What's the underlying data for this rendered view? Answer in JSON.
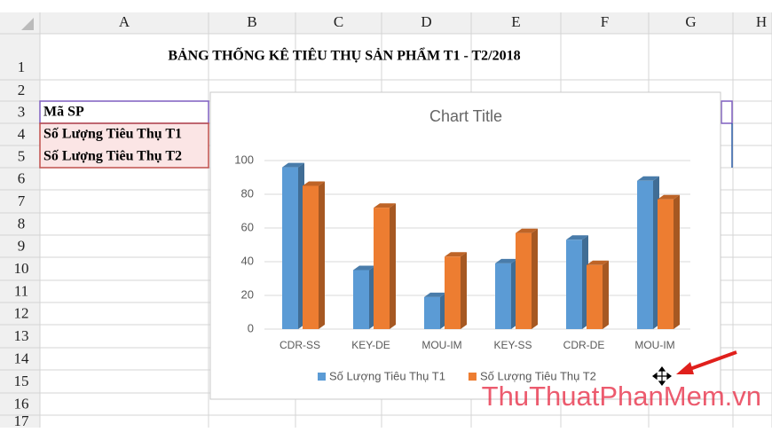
{
  "sheet": {
    "columns": [
      "A",
      "B",
      "C",
      "D",
      "E",
      "F",
      "G",
      "H"
    ],
    "rows": [
      "1",
      "2",
      "3",
      "4",
      "5",
      "6",
      "7",
      "8",
      "9",
      "10",
      "11",
      "12",
      "13",
      "14",
      "15",
      "16",
      "17"
    ],
    "title": "BẢNG THỐNG KÊ TIÊU THỤ SẢN PHẨM T1 - T2/2018",
    "cells": [
      "Mã SP",
      "Số Lượng Tiêu Thụ T1",
      "Số Lượng Tiêu Thụ T2"
    ]
  },
  "watermark": "ThuThuatPhanMem.vn",
  "chart_data": {
    "type": "bar3d",
    "title": "Chart Title",
    "categories": [
      "CDR-SS",
      "KEY-DE",
      "MOU-IM",
      "KEY-SS",
      "CDR-DE",
      "MOU-IM"
    ],
    "series": [
      {
        "name": "Số Lượng Tiêu Thụ T1",
        "color": "#5b9bd5",
        "values": [
          96,
          35,
          19,
          39,
          53,
          88
        ]
      },
      {
        "name": "Số Lượng Tiêu Thụ T2",
        "color": "#ed7d31",
        "values": [
          85,
          72,
          43,
          57,
          38,
          77
        ]
      }
    ],
    "ylim": [
      0,
      100
    ],
    "yticks": [
      0,
      20,
      40,
      60,
      80,
      100
    ],
    "grid": true,
    "legend": "bottom"
  }
}
